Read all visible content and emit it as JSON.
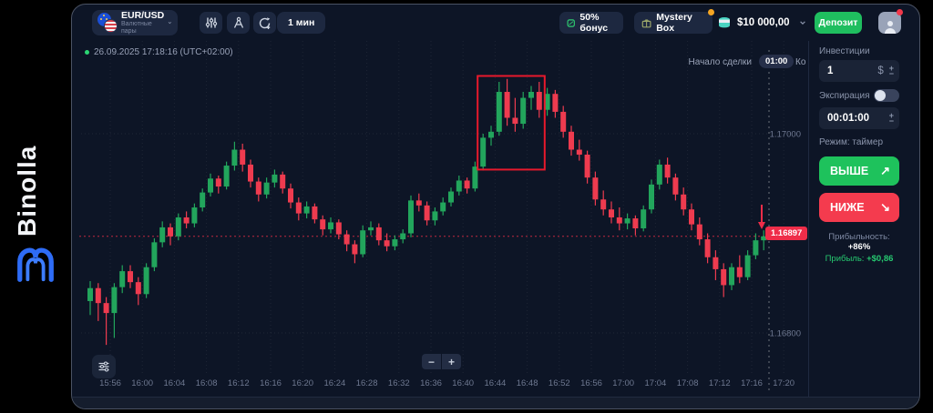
{
  "brand": {
    "name": "Binolla"
  },
  "topbar": {
    "symbol": {
      "pair": "EUR/USD",
      "category": "Валютные пары"
    },
    "timeframe": "1 мин",
    "bonus_chip": "50% бонус",
    "mystery_chip": "Mystery Box",
    "balance": "$10 000,00",
    "deposit_button": "Депозит"
  },
  "chart_header": {
    "datetime": "26.09.2025 17:18:16 (UTC+02:00)"
  },
  "trade_markers": {
    "start_label": "Начало сделки",
    "timer": "01:00",
    "end_label_partial": "Ко"
  },
  "chart_controls": {
    "zoom_out": "−",
    "zoom_in": "+",
    "stepper_plus": "+",
    "stepper_minus": "−"
  },
  "panel": {
    "investment_label": "Инвестиции",
    "investment_value": "1",
    "currency_symbol": "$",
    "expiration_label": "Экспирация",
    "expiration_value": "00:01:00",
    "mode_text": "Режим: таймер",
    "higher_button": "ВЫШЕ",
    "higher_arrow": "↗",
    "lower_button": "НИЖЕ",
    "lower_arrow": "↘",
    "profitability_label": "Прибыльность:",
    "profitability_value": "+86%",
    "profit_label": "Прибыль:",
    "profit_value": "+$0,86"
  },
  "chart_data": {
    "type": "candlestick",
    "symbol": "EUR/USD",
    "interval": "1 мин",
    "current_price": 1.16897,
    "current_price_label": "1.16897",
    "y_axis_labels": [
      "1.17000",
      "1.16800"
    ],
    "y_view": [
      1.1678,
      1.1708
    ],
    "x_time_labels": [
      "15:56",
      "16:00",
      "16:04",
      "16:08",
      "16:12",
      "16:16",
      "16:20",
      "16:24",
      "16:28",
      "16:32",
      "16:36",
      "16:40",
      "16:44",
      "16:48",
      "16:52",
      "16:56",
      "17:00",
      "17:04",
      "17:08",
      "17:12",
      "17:16",
      "17:20"
    ],
    "grid": true,
    "colors": {
      "up": "#22a55c",
      "down": "#ee3b4f",
      "highlight": "#e8192c",
      "current": "#ef2d49"
    },
    "highlight_box": {
      "from_candle": 49,
      "to_candle": 56,
      "price_top": 1.17058,
      "price_bottom": 1.16964
    },
    "candles": [
      [
        1.16832,
        1.16852,
        1.16818,
        1.16845
      ],
      [
        1.16845,
        1.1685,
        1.16812,
        1.1683
      ],
      [
        1.1683,
        1.16836,
        1.16788,
        1.1682
      ],
      [
        1.1682,
        1.1685,
        1.16795,
        1.16846
      ],
      [
        1.16846,
        1.16868,
        1.1684,
        1.16862
      ],
      [
        1.16862,
        1.16868,
        1.16845,
        1.16851
      ],
      [
        1.16851,
        1.16856,
        1.16828,
        1.16839
      ],
      [
        1.16839,
        1.1687,
        1.16835,
        1.16866
      ],
      [
        1.16866,
        1.16895,
        1.16862,
        1.16891
      ],
      [
        1.16891,
        1.16912,
        1.16886,
        1.16906
      ],
      [
        1.16906,
        1.1691,
        1.16888,
        1.16897
      ],
      [
        1.16897,
        1.1692,
        1.16893,
        1.16916
      ],
      [
        1.16916,
        1.16922,
        1.16905,
        1.1691
      ],
      [
        1.1691,
        1.1693,
        1.16906,
        1.16926
      ],
      [
        1.16926,
        1.16945,
        1.16922,
        1.16941
      ],
      [
        1.16941,
        1.1696,
        1.16937,
        1.16955
      ],
      [
        1.16955,
        1.16958,
        1.1694,
        1.16947
      ],
      [
        1.16947,
        1.16972,
        1.16944,
        1.16968
      ],
      [
        1.16968,
        1.16992,
        1.16963,
        1.16984
      ],
      [
        1.16984,
        1.1699,
        1.16962,
        1.16969
      ],
      [
        1.16969,
        1.16974,
        1.16946,
        1.16952
      ],
      [
        1.16952,
        1.16956,
        1.16932,
        1.16939
      ],
      [
        1.16939,
        1.16956,
        1.16935,
        1.16951
      ],
      [
        1.16951,
        1.16964,
        1.16946,
        1.16959
      ],
      [
        1.16959,
        1.16962,
        1.1694,
        1.16945
      ],
      [
        1.16945,
        1.1695,
        1.16925,
        1.16931
      ],
      [
        1.16931,
        1.16936,
        1.16913,
        1.1692
      ],
      [
        1.1692,
        1.16932,
        1.16915,
        1.16927
      ],
      [
        1.16927,
        1.1693,
        1.1691,
        1.16914
      ],
      [
        1.16914,
        1.16918,
        1.16898,
        1.16904
      ],
      [
        1.16904,
        1.16916,
        1.169,
        1.16911
      ],
      [
        1.16911,
        1.16914,
        1.16894,
        1.16899
      ],
      [
        1.16899,
        1.16903,
        1.16882,
        1.16889
      ],
      [
        1.16889,
        1.16893,
        1.1687,
        1.16879
      ],
      [
        1.16879,
        1.16908,
        1.16876,
        1.16903
      ],
      [
        1.16903,
        1.16912,
        1.16898,
        1.16906
      ],
      [
        1.16906,
        1.1691,
        1.16888,
        1.16893
      ],
      [
        1.16893,
        1.169,
        1.16882,
        1.16887
      ],
      [
        1.16887,
        1.16898,
        1.16883,
        1.16894
      ],
      [
        1.16894,
        1.16904,
        1.1689,
        1.169
      ],
      [
        1.169,
        1.16938,
        1.16896,
        1.16933
      ],
      [
        1.16933,
        1.1694,
        1.16922,
        1.16928
      ],
      [
        1.16928,
        1.16932,
        1.16908,
        1.16913
      ],
      [
        1.16913,
        1.16926,
        1.16908,
        1.16922
      ],
      [
        1.16922,
        1.16936,
        1.16918,
        1.16931
      ],
      [
        1.16931,
        1.16946,
        1.16927,
        1.16942
      ],
      [
        1.16942,
        1.16958,
        1.16938,
        1.16953
      ],
      [
        1.16953,
        1.16956,
        1.1694,
        1.16945
      ],
      [
        1.16945,
        1.16972,
        1.16942,
        1.16967
      ],
      [
        1.16967,
        1.17,
        1.16963,
        1.16996
      ],
      [
        1.16996,
        1.17008,
        1.16988,
        1.17002
      ],
      [
        1.17002,
        1.17052,
        1.16998,
        1.17042
      ],
      [
        1.17042,
        1.17055,
        1.17008,
        1.17016
      ],
      [
        1.17016,
        1.17036,
        1.17002,
        1.1701
      ],
      [
        1.1701,
        1.17042,
        1.17005,
        1.17036
      ],
      [
        1.17036,
        1.17048,
        1.17024,
        1.17042
      ],
      [
        1.17042,
        1.17052,
        1.17016,
        1.17024
      ],
      [
        1.17024,
        1.17046,
        1.17018,
        1.1704
      ],
      [
        1.1704,
        1.17044,
        1.17016,
        1.17022
      ],
      [
        1.17022,
        1.17028,
        1.16996,
        1.17002
      ],
      [
        1.17002,
        1.17008,
        1.16978,
        1.16984
      ],
      [
        1.16984,
        1.16994,
        1.16973,
        1.16979
      ],
      [
        1.16979,
        1.16983,
        1.1695,
        1.16956
      ],
      [
        1.16956,
        1.16962,
        1.16928,
        1.16934
      ],
      [
        1.16934,
        1.16943,
        1.16918,
        1.16924
      ],
      [
        1.16924,
        1.16932,
        1.1691,
        1.16916
      ],
      [
        1.16916,
        1.16926,
        1.16903,
        1.1691
      ],
      [
        1.1691,
        1.1692,
        1.16904,
        1.16915
      ],
      [
        1.16915,
        1.16918,
        1.16898,
        1.16905
      ],
      [
        1.16905,
        1.16928,
        1.16902,
        1.16924
      ],
      [
        1.16924,
        1.16954,
        1.1692,
        1.16949
      ],
      [
        1.16949,
        1.16974,
        1.16944,
        1.16969
      ],
      [
        1.16969,
        1.16976,
        1.1695,
        1.16956
      ],
      [
        1.16956,
        1.1696,
        1.16933,
        1.16939
      ],
      [
        1.16939,
        1.16946,
        1.16918,
        1.16924
      ],
      [
        1.16924,
        1.1693,
        1.16903,
        1.16909
      ],
      [
        1.16909,
        1.16916,
        1.16888,
        1.16894
      ],
      [
        1.16894,
        1.169,
        1.1687,
        1.16876
      ],
      [
        1.16876,
        1.16883,
        1.16853,
        1.16864
      ],
      [
        1.16864,
        1.1687,
        1.16836,
        1.16848
      ],
      [
        1.16848,
        1.1687,
        1.16843,
        1.16866
      ],
      [
        1.16866,
        1.16878,
        1.1685,
        1.16856
      ],
      [
        1.16856,
        1.16883,
        1.16853,
        1.16878
      ],
      [
        1.16878,
        1.169,
        1.16874,
        1.16893
      ],
      [
        1.16893,
        1.16903,
        1.16883,
        1.16897
      ]
    ]
  }
}
